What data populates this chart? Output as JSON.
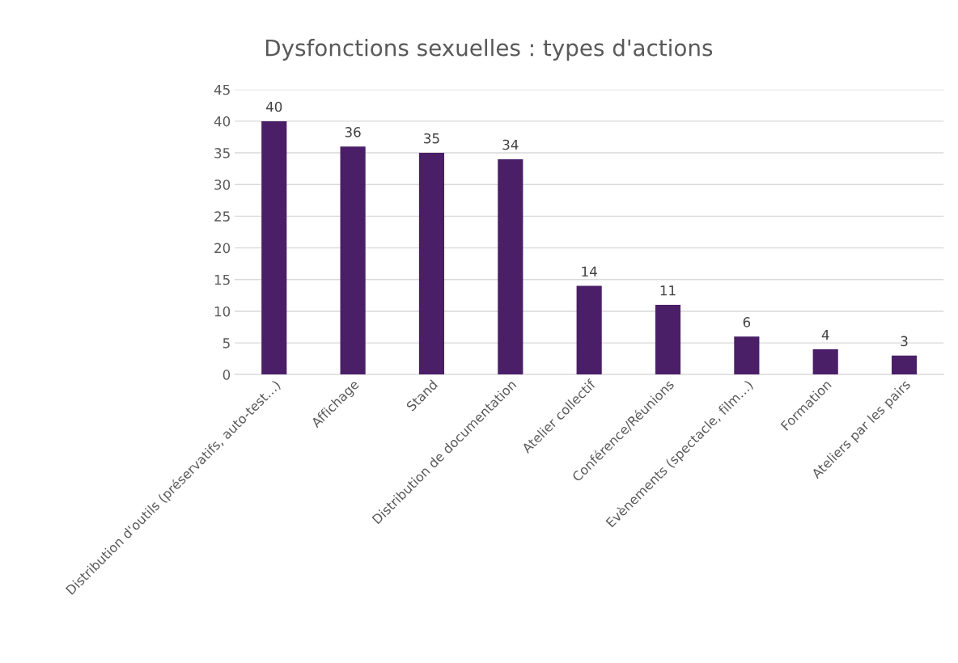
{
  "chart_data": {
    "type": "bar",
    "title": "Dysfonctions sexuelles : types d'actions",
    "categories": [
      "Distribution d'outils (préservatifs, auto-test…)",
      "Affichage",
      "Stand",
      "Distribution de documentation",
      "Atelier collectif",
      "Conférence/Réunions",
      "Evènements (spectacle, film…)",
      "Formation",
      "Ateliers par les pairs"
    ],
    "values": [
      40,
      36,
      35,
      34,
      14,
      11,
      6,
      4,
      3
    ],
    "color": "#4b1f68",
    "ylim": [
      0,
      45
    ],
    "yticks": [
      0,
      5,
      10,
      15,
      20,
      25,
      30,
      35,
      40,
      45
    ],
    "grid": "y",
    "data_labels": true,
    "legend": false
  }
}
